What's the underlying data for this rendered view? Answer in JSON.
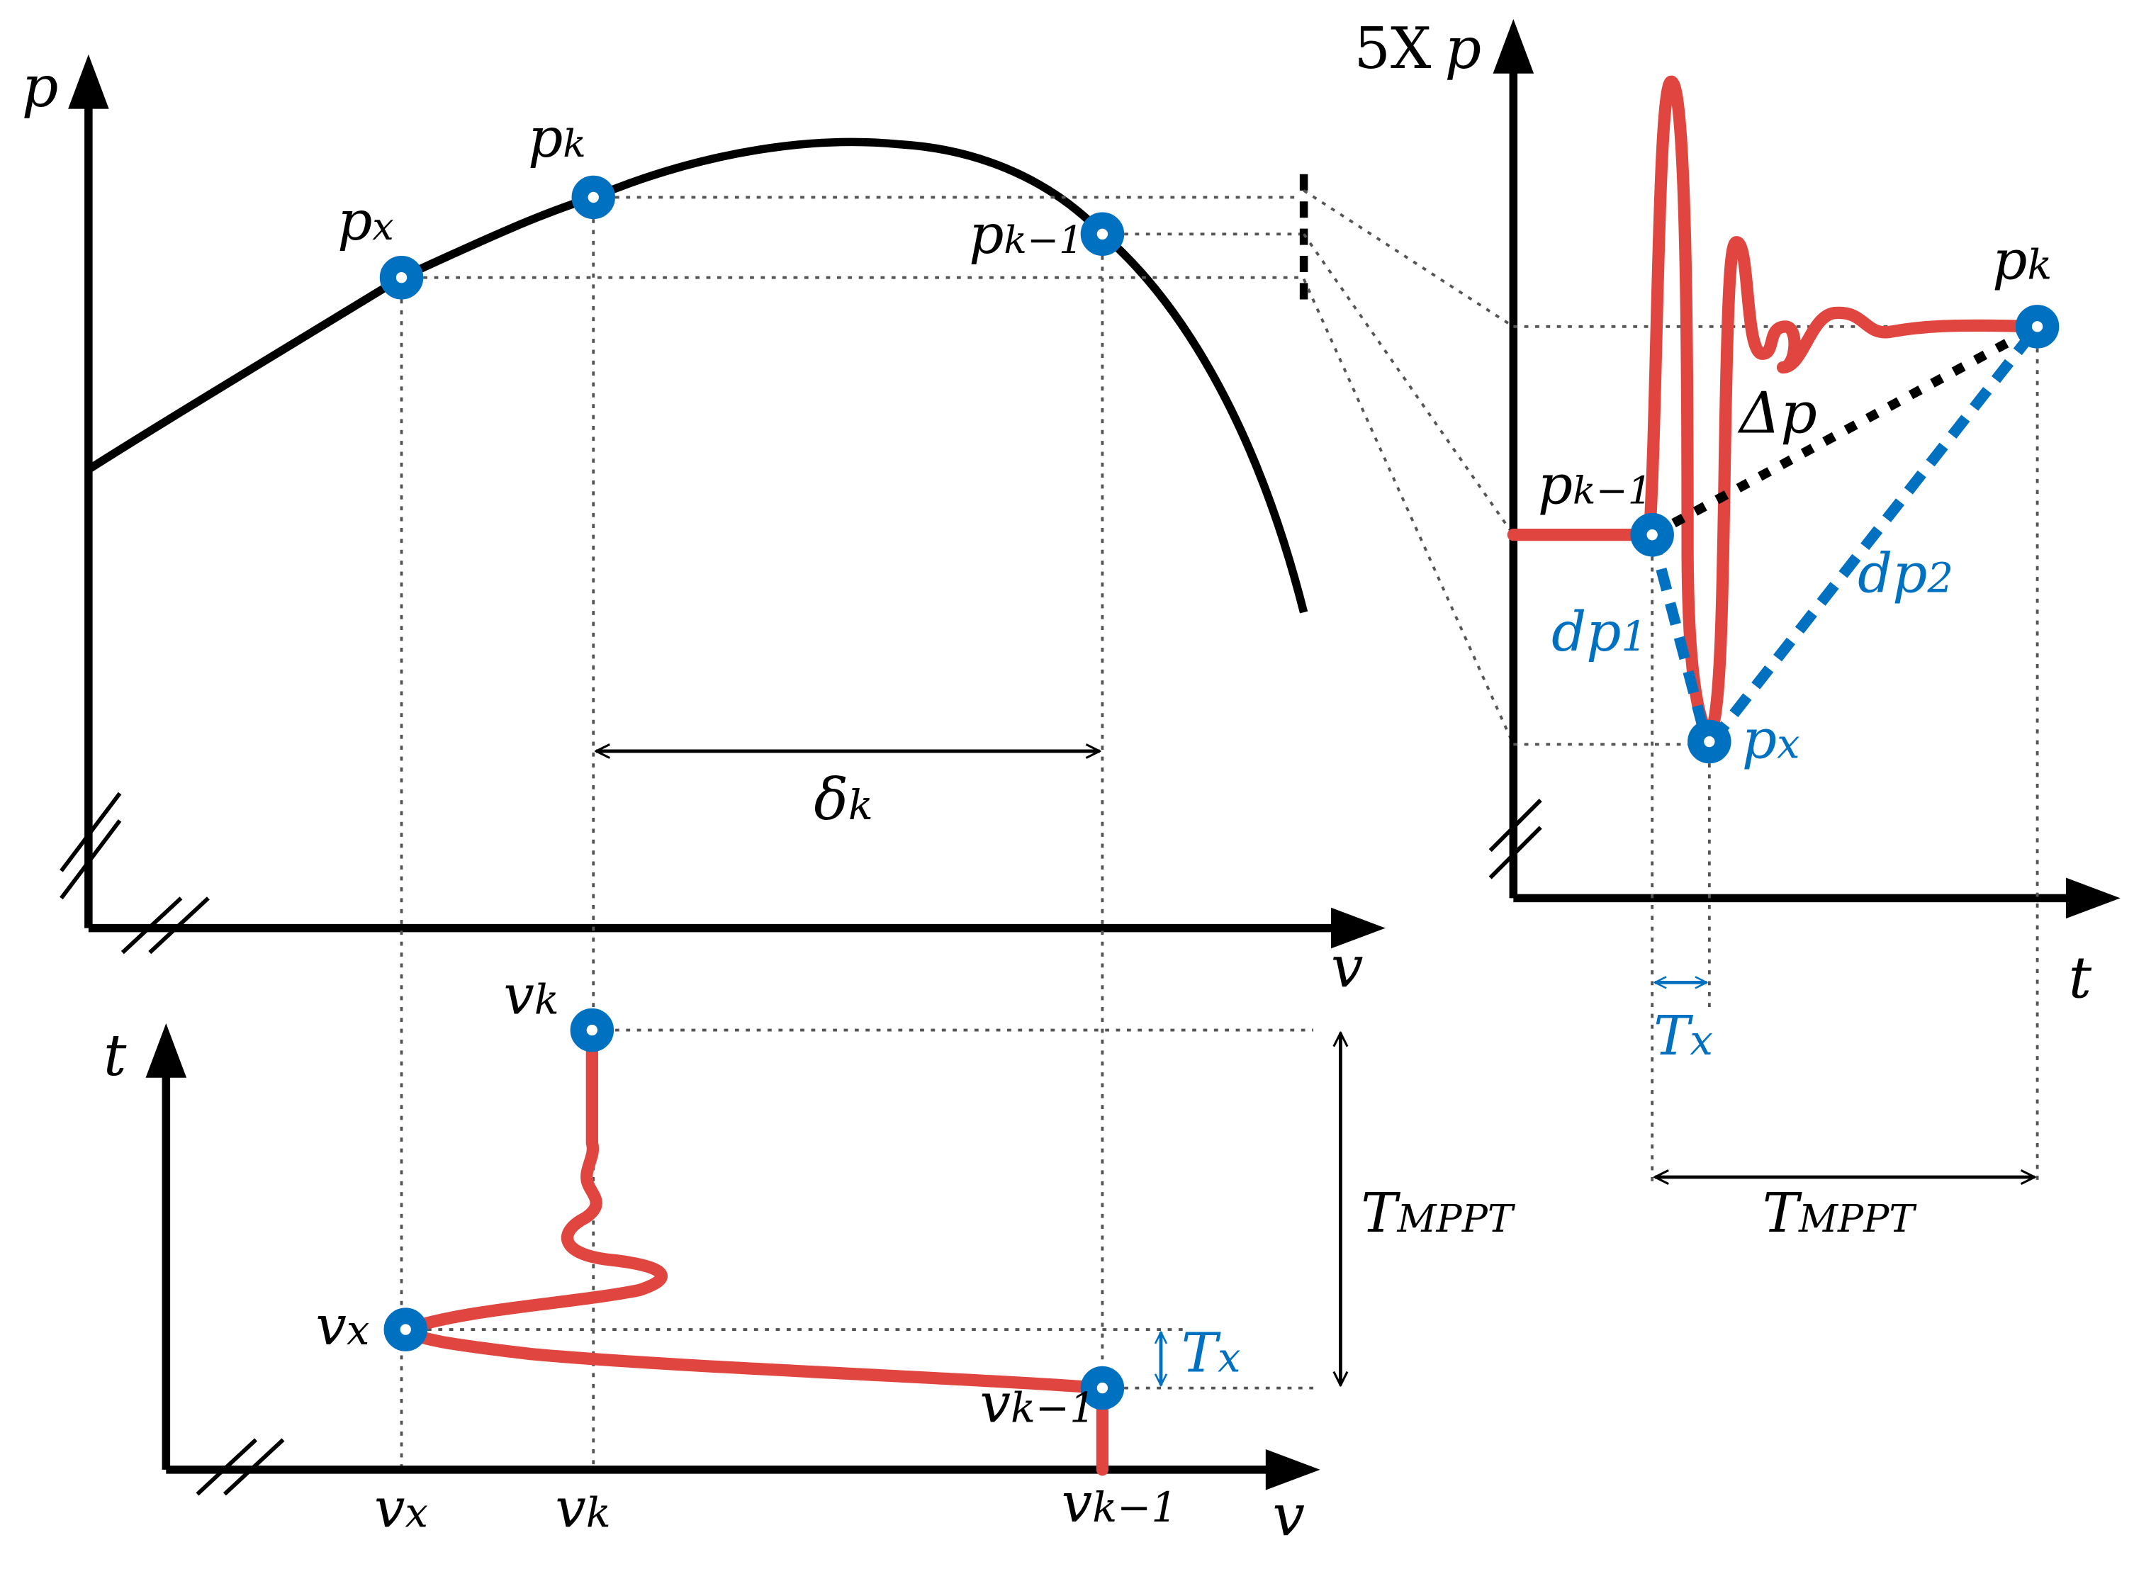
{
  "colors": {
    "curve": "#000000",
    "marker": "#0070c0",
    "response": "#e0463f",
    "annotation_blue": "#0070c0"
  },
  "pv_plot": {
    "y_axis": "p",
    "x_axis": "v",
    "points": {
      "px": {
        "base": "p",
        "sub": "x"
      },
      "pk": {
        "base": "p",
        "sub": "k"
      },
      "pk1": {
        "base": "p",
        "sub": "k−1"
      }
    },
    "delta": {
      "base": "δ",
      "sub": "k"
    }
  },
  "vt_plot": {
    "y_axis": "t",
    "x_axis": "v",
    "points": {
      "vk": {
        "base": "v",
        "sub": "k"
      },
      "vx": {
        "base": "v",
        "sub": "x"
      },
      "vk1": {
        "base": "v",
        "sub": "k−1"
      }
    },
    "ticks": [
      {
        "base": "v",
        "sub": "x"
      },
      {
        "base": "v",
        "sub": "k"
      },
      {
        "base": "v",
        "sub": "k−1"
      }
    ],
    "t_mppt": {
      "base": "T",
      "sub": "MPPT"
    },
    "t_x": {
      "base": "T",
      "sub": "x"
    }
  },
  "pt_plot": {
    "scale": "5X",
    "y_axis": "p",
    "x_axis": "t",
    "points": {
      "pk": {
        "base": "p",
        "sub": "k"
      },
      "pk1": {
        "base": "p",
        "sub": "k−1"
      },
      "px": {
        "base": "p",
        "sub": "x"
      }
    },
    "delta_p": "Δp",
    "dp1": {
      "base": "dp",
      "sub": "1"
    },
    "dp2": {
      "base": "dp",
      "sub": "2"
    },
    "t_x": {
      "base": "T",
      "sub": "x"
    },
    "t_mppt": {
      "base": "T",
      "sub": "MPPT"
    }
  }
}
